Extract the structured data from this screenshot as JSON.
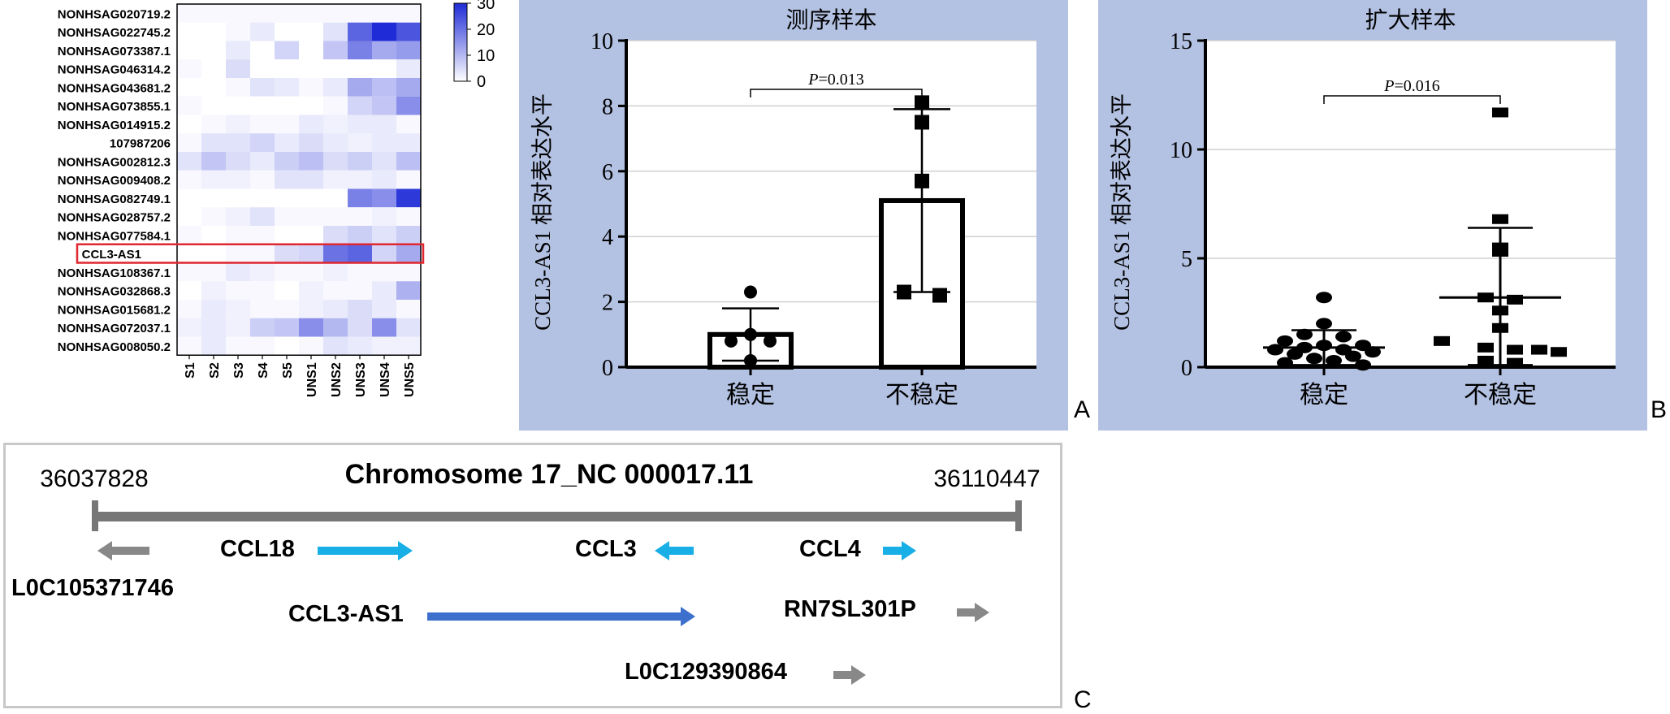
{
  "heatmap": {
    "rows": [
      "NONHSAG020719.2",
      "NONHSAG022745.2",
      "NONHSAG073387.1",
      "NONHSAG046314.2",
      "NONHSAG043681.2",
      "NONHSAG073855.1",
      "NONHSAG014915.2",
      "107987206",
      "NONHSAG002812.3",
      "NONHSAG009408.2",
      "NONHSAG082749.1",
      "NONHSAG028757.2",
      "NONHSAG077584.1",
      "CCL3-AS1",
      "NONHSAG108367.1",
      "NONHSAG032868.3",
      "NONHSAG015681.2",
      "NONHSAG072037.1",
      "NONHSAG008050.2"
    ],
    "columns": [
      "S1",
      "S2",
      "S3",
      "S4",
      "S5",
      "UNS1",
      "UNS2",
      "UNS3",
      "UNS4",
      "UNS5"
    ],
    "values": [
      [
        1,
        1,
        1,
        1,
        1,
        1,
        1,
        1,
        1,
        1
      ],
      [
        0,
        0,
        1,
        3,
        0,
        0,
        4,
        22,
        30,
        24
      ],
      [
        0,
        0,
        3,
        0,
        6,
        0,
        8,
        18,
        12,
        14
      ],
      [
        1,
        0,
        5,
        0,
        0,
        0,
        0,
        0,
        0,
        3
      ],
      [
        0,
        0,
        1,
        4,
        3,
        1,
        3,
        12,
        9,
        12
      ],
      [
        1,
        0,
        0,
        0,
        0,
        0,
        1,
        6,
        8,
        16
      ],
      [
        0,
        1,
        2,
        1,
        1,
        3,
        2,
        3,
        3,
        1
      ],
      [
        1,
        4,
        4,
        6,
        3,
        5,
        3,
        2,
        3,
        3
      ],
      [
        4,
        8,
        5,
        3,
        7,
        9,
        5,
        7,
        4,
        9
      ],
      [
        1,
        2,
        2,
        1,
        4,
        4,
        2,
        2,
        3,
        1
      ],
      [
        0,
        0,
        0,
        0,
        0,
        0,
        0,
        18,
        16,
        28
      ],
      [
        0,
        1,
        2,
        4,
        1,
        1,
        1,
        1,
        2,
        1
      ],
      [
        1,
        0,
        1,
        1,
        0,
        0,
        5,
        7,
        4,
        7
      ],
      [
        0,
        0,
        1,
        1,
        5,
        6,
        20,
        22,
        6,
        12
      ],
      [
        1,
        1,
        3,
        2,
        1,
        1,
        2,
        1,
        1,
        1
      ],
      [
        0,
        2,
        1,
        1,
        0,
        2,
        1,
        1,
        3,
        11
      ],
      [
        1,
        3,
        2,
        1,
        1,
        2,
        3,
        5,
        3,
        1
      ],
      [
        2,
        3,
        2,
        7,
        8,
        16,
        10,
        5,
        16,
        4
      ],
      [
        1,
        3,
        1,
        1,
        0,
        1,
        4,
        3,
        2,
        2
      ]
    ],
    "highlight_row": "CCL3-AS1",
    "colorbar_ticks": [
      "30",
      "20",
      "10",
      "0"
    ],
    "vmax": 30,
    "colors": {
      "low": "#ffffff",
      "high": "#1f2bd6",
      "highlight_box": "#e0262f"
    }
  },
  "chart_data": [
    {
      "type": "bar",
      "panel": "A",
      "title": "测序样本",
      "ylabel": "CCL3-AS1 相对表达水平",
      "categories": [
        "稳定",
        "不稳定"
      ],
      "values": [
        1.0,
        5.1
      ],
      "error": [
        [
          0.2,
          1.8
        ],
        [
          2.3,
          7.9
        ]
      ],
      "points": [
        [
          2.3,
          1.0,
          0.8,
          0.8,
          0.2
        ],
        [
          8.1,
          7.5,
          5.7,
          2.3,
          2.2
        ]
      ],
      "ylim": [
        0,
        10
      ],
      "yticks": [
        0,
        2,
        4,
        6,
        8,
        10
      ],
      "annotation": "P=0.013",
      "background": "#b3c1e2",
      "plot_bg": "#ffffff"
    },
    {
      "type": "scatter",
      "panel": "B",
      "title": "扩大样本",
      "ylabel": "CCL3-AS1 相对表达水平",
      "categories": [
        "稳定",
        "不稳定"
      ],
      "means": [
        0.9,
        3.2
      ],
      "error": [
        [
          0.1,
          1.7
        ],
        [
          0.1,
          6.4
        ]
      ],
      "points": [
        [
          3.2,
          2.0,
          1.5,
          1.4,
          1.2,
          1.0,
          1.0,
          0.9,
          0.8,
          0.8,
          0.7,
          0.6,
          0.5,
          0.4,
          0.3,
          0.2,
          0.1
        ],
        [
          11.7,
          6.8,
          5.5,
          5.3,
          3.2,
          3.1,
          2.6,
          1.8,
          1.2,
          0.9,
          0.8,
          0.8,
          0.7,
          0.3,
          0.2
        ]
      ],
      "ylim": [
        0,
        15
      ],
      "yticks": [
        0,
        5,
        10,
        15
      ],
      "annotation": "P=0.016",
      "background": "#b3c1e2",
      "plot_bg": "#ffffff"
    }
  ],
  "panel_labels": {
    "a": "A",
    "b": "B",
    "c": "C"
  },
  "genome": {
    "title": "Chromosome 17_NC 000017.11",
    "start": "36037828",
    "end": "36110447",
    "genes": {
      "loc1": "L0C105371746",
      "ccl18": "CCL18",
      "ccl3": "CCL3",
      "ccl4": "CCL4",
      "ccl3as1": "CCL3-AS1",
      "rn7": "RN7SL301P",
      "loc2": "L0C129390864"
    },
    "colors": {
      "axis": "#777777",
      "cyan": "#18aee6",
      "blue": "#3d6fcc",
      "gray": "#888888"
    }
  }
}
